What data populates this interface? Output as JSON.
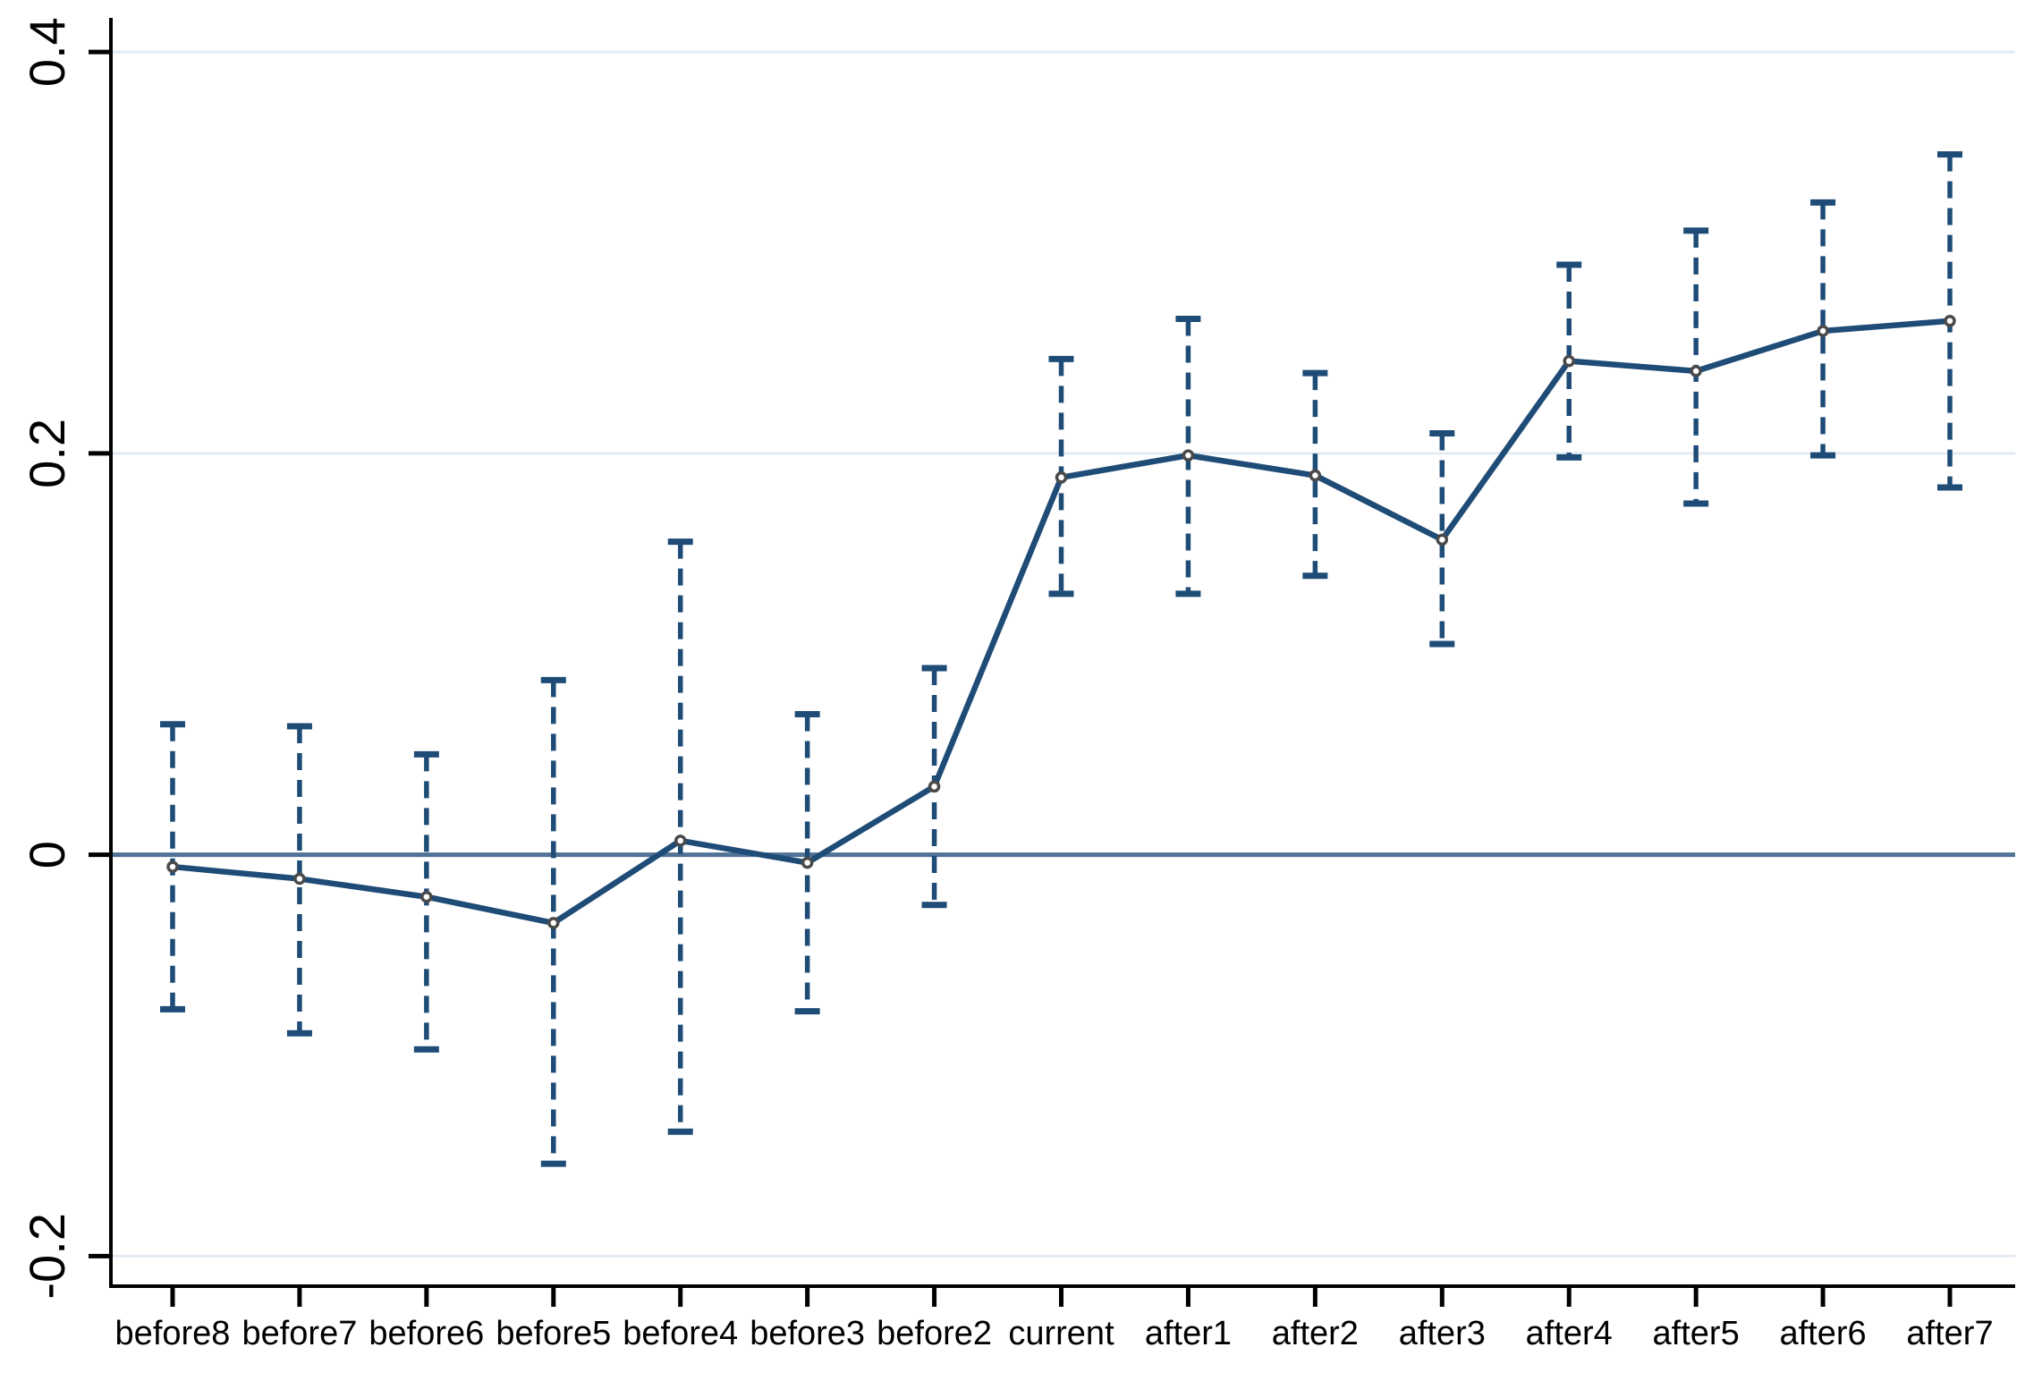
{
  "figure": {
    "title": "",
    "background": "#ffffff",
    "colors": {
      "series": "#1e4c77",
      "error_bar": "#1e4c77",
      "zero_line": "#4f7296",
      "gridline": "#e2ebf3",
      "marker_fill": "#ffffff",
      "marker_stroke": "#4a4a4a",
      "axis": "#000000",
      "tick_label": "#000000"
    }
  },
  "chart_data": {
    "type": "line",
    "title": "",
    "xlabel": "",
    "ylabel": "",
    "legend": "none",
    "grid": "horizontal",
    "ylim": [
      -0.215,
      0.417
    ],
    "y_ticks": [
      {
        "value": 0.4,
        "label": "0.4"
      },
      {
        "value": 0.2,
        "label": "0.2"
      },
      {
        "value": 0,
        "label": "0"
      },
      {
        "value": -0.2,
        "label": "-0.2"
      }
    ],
    "zero_reference_line": 0,
    "categories": [
      "before8",
      "before7",
      "before6",
      "before5",
      "before4",
      "before3",
      "before2",
      "current",
      "after1",
      "after2",
      "after3",
      "after4",
      "after5",
      "after6",
      "after7"
    ],
    "series": [
      {
        "name": "point-estimate",
        "marker": "open-circle",
        "values": [
          -0.006,
          -0.012,
          -0.021,
          -0.034,
          0.007,
          -0.004,
          0.034,
          0.188,
          0.199,
          0.189,
          0.157,
          0.246,
          0.241,
          0.261,
          0.266
        ]
      }
    ],
    "error_bars": {
      "style": "dashed-with-caps",
      "lower": [
        -0.077,
        -0.089,
        -0.097,
        -0.154,
        -0.138,
        -0.078,
        -0.025,
        0.13,
        0.13,
        0.139,
        0.105,
        0.198,
        0.175,
        0.199,
        0.183
      ],
      "upper": [
        0.065,
        0.064,
        0.05,
        0.087,
        0.156,
        0.07,
        0.093,
        0.247,
        0.267,
        0.24,
        0.21,
        0.294,
        0.311,
        0.325,
        0.349
      ]
    }
  }
}
